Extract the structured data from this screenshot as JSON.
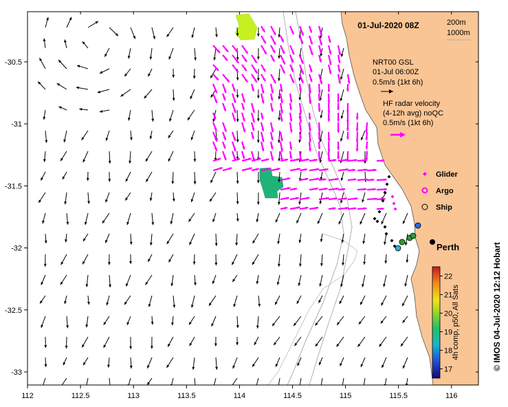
{
  "header": {
    "date_label": "01-Jul-2020 08Z",
    "isobath_200": "200m",
    "isobath_1000": "1000m"
  },
  "axes": {
    "x_ticks": [
      "112",
      "112.5",
      "113",
      "113.5",
      "114",
      "114.5",
      "115",
      "115.5",
      "116"
    ],
    "x_values": [
      112,
      112.5,
      113,
      113.5,
      114,
      114.5,
      115,
      115.5,
      116
    ],
    "y_ticks": [
      "-30.5",
      "-31",
      "-31.5",
      "-32",
      "-32.5",
      "-33"
    ],
    "y_values": [
      -30.5,
      -31,
      -31.5,
      -32,
      -32.5,
      -33
    ],
    "xlim": [
      112,
      116.25
    ],
    "ylim": [
      -33.1,
      -30.1
    ]
  },
  "legend": {
    "model_line1": "NRT00 GSL",
    "model_line2": "01-Jul 06:00Z",
    "model_scale": "0.5m/s (1kt 6h)",
    "radar_line1": "HF radar velocity",
    "radar_line2": "(4-12h avg) noQC",
    "radar_scale": "0.5m/s (1kt 6h)",
    "glider": "Glider",
    "argo": "Argo",
    "ship": "Ship"
  },
  "city": {
    "name": "Perth",
    "lon": 115.86,
    "lat": -31.95
  },
  "colorbar": {
    "ticks": [
      "17",
      "18",
      "19",
      "20",
      "21",
      "22"
    ],
    "values": [
      17,
      18,
      19,
      20,
      21,
      22
    ],
    "range": [
      16.5,
      22.5
    ],
    "label": "4h comp, p50, All Sats"
  },
  "credit": "© IMOS 04-Jul-2020 12:12 Hobart",
  "colors": {
    "land": "#f9c595",
    "model_arrow": "#000000",
    "radar_arrow": "#ff00ff",
    "isobath": "#b0b0b0",
    "glider": "#ff00ff",
    "ship_fill": "#2ca02c"
  }
}
